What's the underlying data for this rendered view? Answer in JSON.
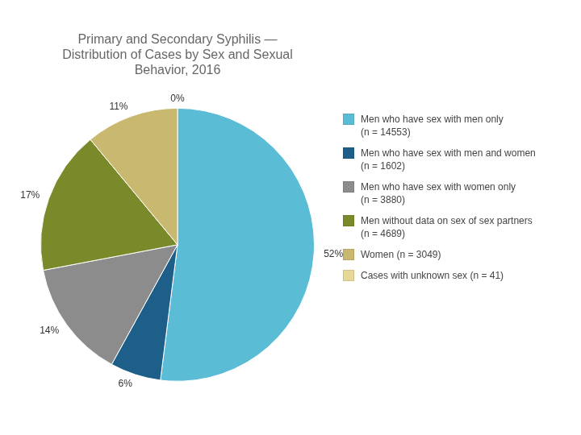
{
  "chart_data": {
    "type": "pie",
    "title": "Primary and Secondary Syphilis —\nDistribution of Cases by Sex and Sexual\nBehavior, 2016",
    "categories": [
      "Men who have sex with men only\n(n = 14553)",
      "Men who have sex with men and women\n(n = 1602)",
      "Men who have sex with women only\n(n = 3880)",
      "Men without data on sex of sex partners\n(n = 4689)",
      "Women (n = 3049)",
      "Cases with unknown sex (n = 41)"
    ],
    "values": [
      52,
      6,
      14,
      17,
      11,
      0
    ],
    "value_labels": [
      "52%",
      "6%",
      "14%",
      "17%",
      "11%",
      "0%"
    ],
    "colors": [
      "#5bbcd6",
      "#1e5f8a",
      "#8c8c8c",
      "#7a8a2a",
      "#c8b870",
      "#e8d898"
    ],
    "data_labels": true,
    "legend": "right"
  }
}
